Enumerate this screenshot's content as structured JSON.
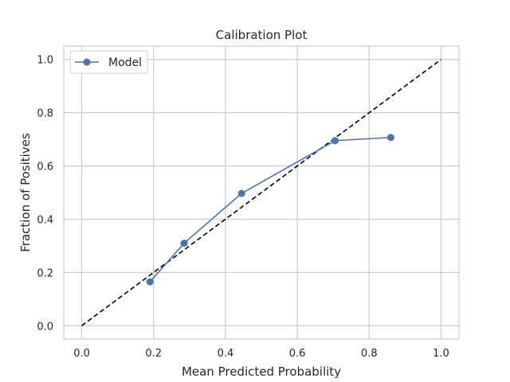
{
  "chart_data": {
    "type": "line",
    "title": "Calibration Plot",
    "xlabel": "Mean Predicted Probability",
    "ylabel": "Fraction of Positives",
    "xlim": [
      -0.05,
      1.05
    ],
    "ylim": [
      -0.05,
      1.05
    ],
    "xticks": [
      0.0,
      0.2,
      0.4,
      0.6,
      0.8,
      1.0
    ],
    "yticks": [
      0.0,
      0.2,
      0.4,
      0.6,
      0.8,
      1.0
    ],
    "xtick_labels": [
      "0.0",
      "0.2",
      "0.4",
      "0.6",
      "0.8",
      "1.0"
    ],
    "ytick_labels": [
      "0.0",
      "0.2",
      "0.4",
      "0.6",
      "0.8",
      "1.0"
    ],
    "grid": true,
    "legend_position": "top-left",
    "series": [
      {
        "name": "Model",
        "color": "#4c72b0",
        "marker": "circle",
        "x": [
          0.19,
          0.285,
          0.445,
          0.705,
          0.86
        ],
        "y": [
          0.165,
          0.31,
          0.497,
          0.695,
          0.707
        ]
      }
    ],
    "reference_line": {
      "x": [
        0.0,
        1.0
      ],
      "y": [
        0.0,
        1.0
      ],
      "style": "dashed",
      "color": "#000000"
    }
  }
}
